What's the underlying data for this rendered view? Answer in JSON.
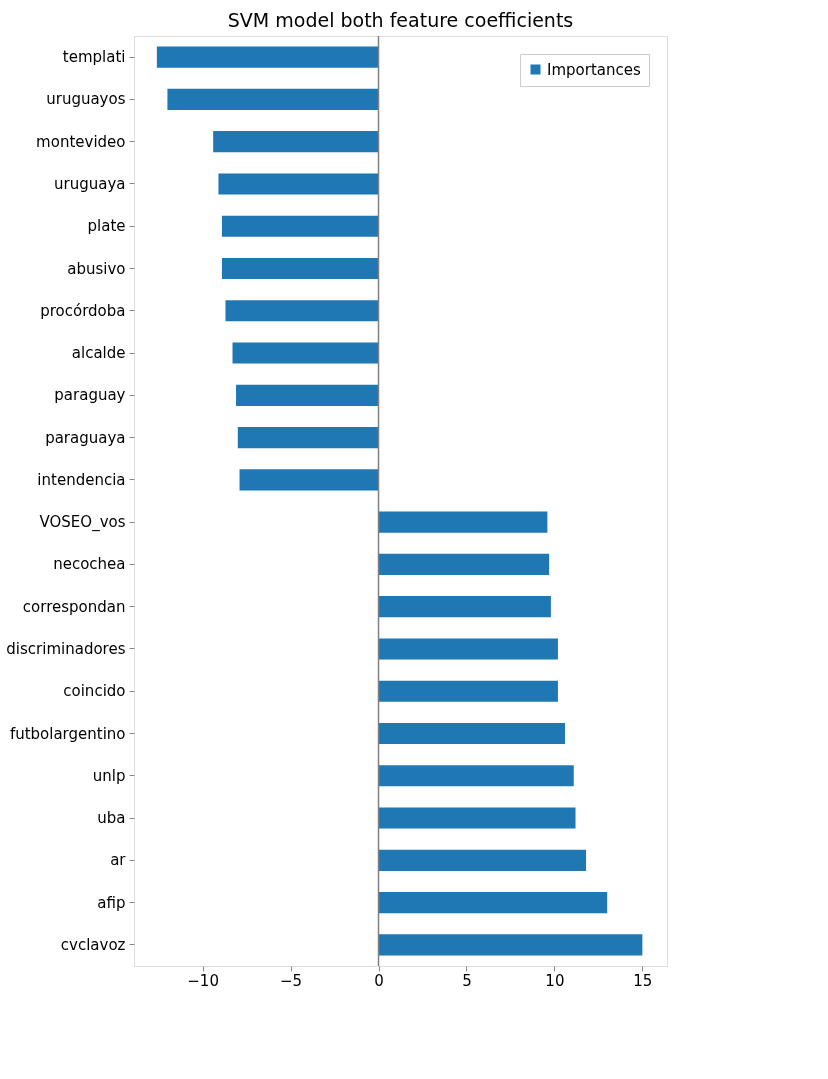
{
  "chart_data": {
    "type": "bar",
    "orientation": "horizontal",
    "title": "SVM model both feature coefficients",
    "categories": [
      "templati",
      "uruguayos",
      "montevideo",
      "uruguaya",
      "plate",
      "abusivo",
      "procórdoba",
      "alcalde",
      "paraguay",
      "paraguaya",
      "intendencia",
      "VOSEO_vos",
      "necochea",
      "correspondan",
      "discriminadores",
      "coincido",
      "futbolargentino",
      "unlp",
      "uba",
      "ar",
      "afip",
      "cvclavoz"
    ],
    "series": [
      {
        "name": "Importances",
        "color": "#1f77b4",
        "values": [
          -12.6,
          -12.0,
          -9.4,
          -9.1,
          -8.9,
          -8.9,
          -8.7,
          -8.3,
          -8.1,
          -8.0,
          -7.9,
          9.6,
          9.7,
          9.8,
          10.2,
          10.2,
          10.6,
          11.1,
          11.2,
          11.8,
          13.0,
          15.0
        ]
      }
    ],
    "xlim": [
      -13.9,
      16.4
    ],
    "xticks": [
      -10,
      -5,
      0,
      5,
      10,
      15
    ],
    "ref_lines": [
      {
        "axis": "x",
        "value": 0,
        "color": "#808080"
      }
    ],
    "legend": "top right",
    "grid": false
  }
}
